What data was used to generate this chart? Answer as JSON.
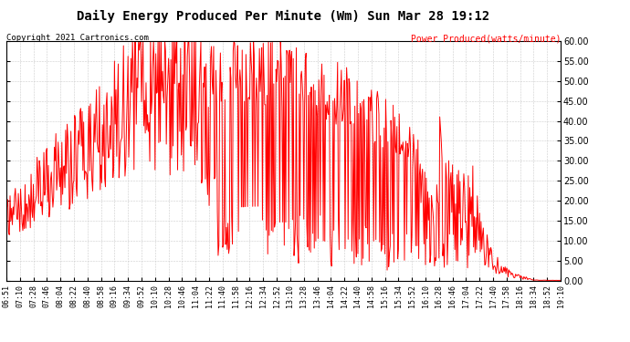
{
  "title": "Daily Energy Produced Per Minute (Wm) Sun Mar 28 19:12",
  "copyright_text": "Copyright 2021 Cartronics.com",
  "legend_text": "Power Produced(watts/minute)",
  "legend_color": "red",
  "copyright_color": "black",
  "title_fontsize": 10,
  "copyright_fontsize": 6.5,
  "legend_fontsize": 7,
  "background_color": "#ffffff",
  "grid_color": "#cccccc",
  "line_color": "red",
  "line_width": 0.7,
  "y_min": 0.0,
  "y_max": 60.0,
  "y_ticks": [
    0,
    5,
    10,
    15,
    20,
    25,
    30,
    35,
    40,
    45,
    50,
    55,
    60
  ],
  "x_tick_labels": [
    "06:51",
    "07:10",
    "07:28",
    "07:46",
    "08:04",
    "08:22",
    "08:40",
    "08:58",
    "09:16",
    "09:34",
    "09:52",
    "10:10",
    "10:28",
    "10:46",
    "11:04",
    "11:22",
    "11:40",
    "11:58",
    "12:16",
    "12:34",
    "12:52",
    "13:10",
    "13:28",
    "13:46",
    "14:04",
    "14:22",
    "14:40",
    "14:58",
    "15:16",
    "15:34",
    "15:52",
    "16:10",
    "16:28",
    "16:46",
    "17:04",
    "17:22",
    "17:40",
    "17:58",
    "18:16",
    "18:34",
    "18:52",
    "19:10"
  ]
}
